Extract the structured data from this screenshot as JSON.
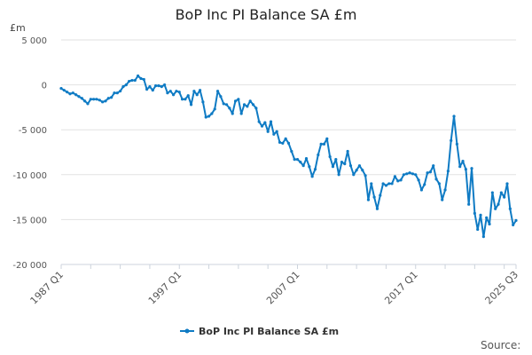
{
  "chart_data": {
    "type": "line",
    "title": "BoP Inc PI Balance SA £m",
    "ylabel": "£m",
    "xlabel": "",
    "source_label": "Source:",
    "x_start": "1987 Q1",
    "x_end": "2025 Q3",
    "x_tick_labels": [
      "1987 Q1",
      "1997 Q1",
      "2007 Q1",
      "2017 Q1",
      "2025 Q3"
    ],
    "y_ticks": [
      5000,
      0,
      -5000,
      -10000,
      -15000,
      -20000
    ],
    "y_tick_labels": [
      "5 000",
      "0",
      "-5 000",
      "-10 000",
      "-15 000",
      "-20 000"
    ],
    "ylim": [
      -20000,
      5000
    ],
    "grid": true,
    "legend_position": "bottom",
    "series": [
      {
        "name": "BoP Inc PI Balance SA £m",
        "color": "#0f7bc4",
        "values": [
          -400,
          -600,
          -800,
          -1000,
          -900,
          -1100,
          -1300,
          -1500,
          -1800,
          -2100,
          -1600,
          -1600,
          -1600,
          -1700,
          -1900,
          -1800,
          -1500,
          -1400,
          -900,
          -900,
          -700,
          -200,
          0,
          400,
          500,
          500,
          1000,
          700,
          600,
          -500,
          -200,
          -600,
          -100,
          -100,
          -200,
          0,
          -900,
          -700,
          -1100,
          -700,
          -800,
          -1600,
          -1600,
          -1200,
          -2200,
          -700,
          -1100,
          -600,
          -1900,
          -3600,
          -3500,
          -3200,
          -2700,
          -700,
          -1300,
          -2100,
          -2200,
          -2600,
          -3200,
          -1800,
          -1600,
          -3200,
          -2200,
          -2400,
          -1800,
          -2200,
          -2600,
          -4100,
          -4600,
          -4200,
          -5200,
          -4100,
          -5500,
          -5200,
          -6400,
          -6500,
          -6000,
          -6500,
          -7400,
          -8300,
          -8300,
          -8600,
          -9000,
          -8200,
          -9100,
          -10200,
          -9400,
          -7800,
          -6600,
          -6600,
          -6000,
          -8000,
          -9100,
          -8300,
          -10000,
          -8600,
          -8800,
          -7400,
          -9000,
          -10000,
          -9500,
          -9000,
          -9500,
          -10100,
          -12800,
          -11000,
          -12500,
          -13800,
          -12300,
          -11000,
          -11200,
          -11000,
          -11000,
          -10200,
          -10700,
          -10600,
          -10000,
          -9900,
          -9800,
          -9900,
          -10000,
          -10600,
          -11700,
          -11100,
          -9800,
          -9700,
          -9000,
          -10500,
          -11000,
          -12800,
          -11700,
          -9600,
          -6200,
          -3500,
          -6600,
          -9100,
          -8500,
          -9400,
          -13300,
          -9300,
          -14300,
          -16100,
          -14500,
          -16900,
          -14800,
          -15500,
          -12000,
          -13800,
          -13300,
          -12000,
          -12500,
          -11000,
          -13800,
          -15600,
          -15100
        ]
      }
    ]
  }
}
